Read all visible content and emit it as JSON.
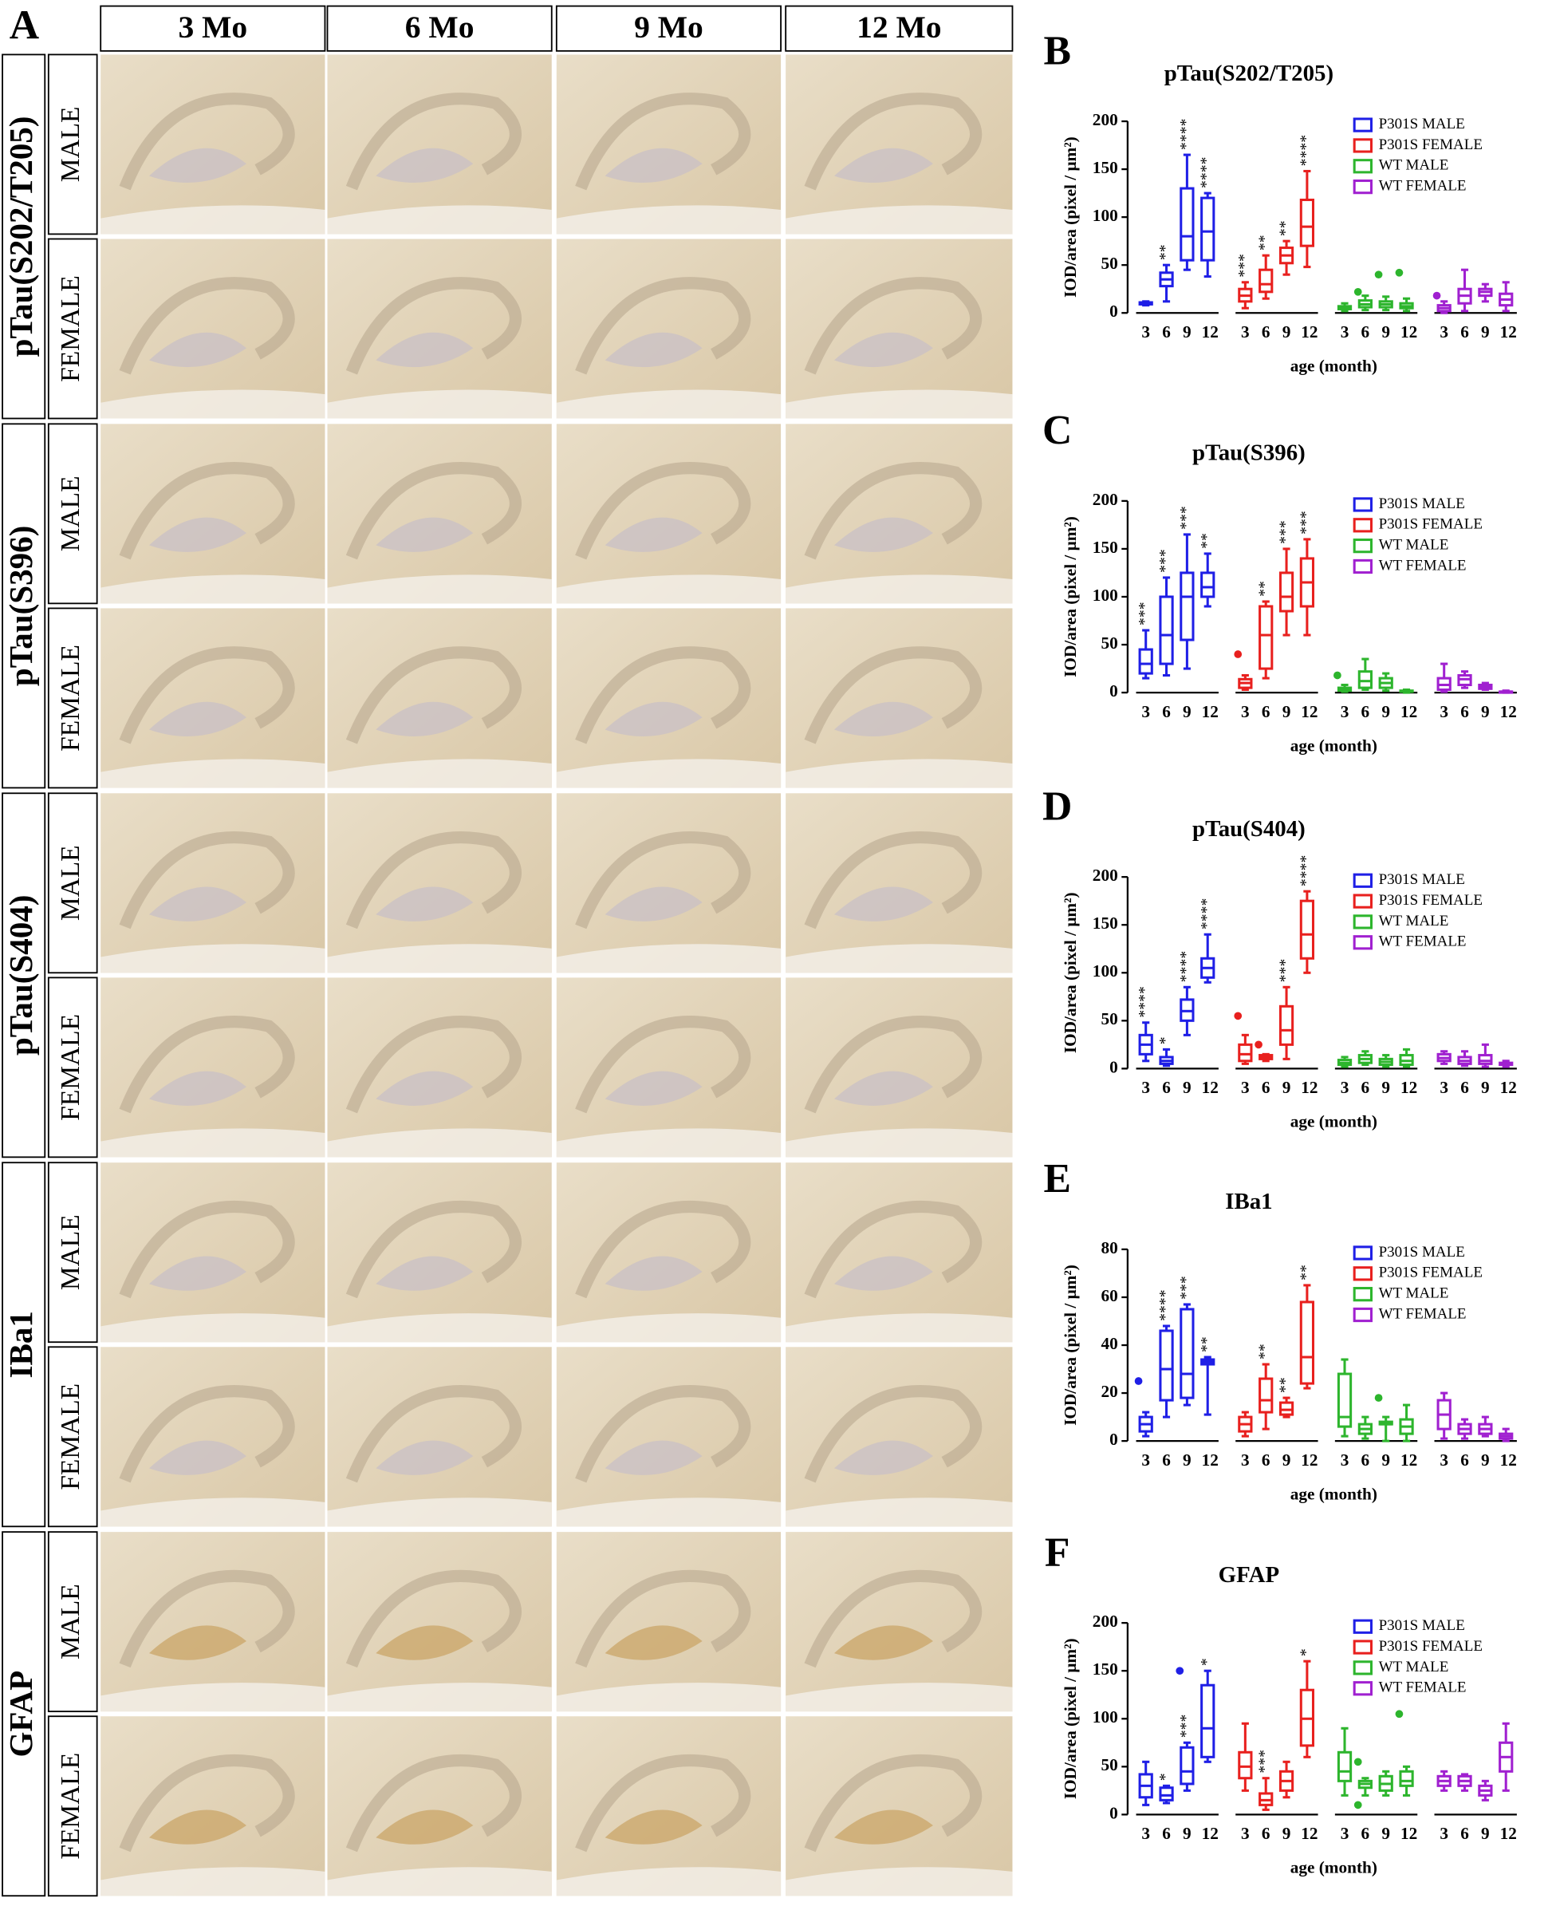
{
  "panel_a": {
    "label": "A",
    "columns": [
      "3 Mo",
      "6 Mo",
      "9 Mo",
      "12 Mo"
    ],
    "markers": [
      {
        "name": "pTau(S202/T205)",
        "rows": [
          "MALE",
          "FEMALE"
        ]
      },
      {
        "name": "pTau(S396)",
        "rows": [
          "MALE",
          "FEMALE"
        ]
      },
      {
        "name": "pTau(S404)",
        "rows": [
          "MALE",
          "FEMALE"
        ]
      },
      {
        "name": "IBa1",
        "rows": [
          "MALE",
          "FEMALE"
        ]
      },
      {
        "name": "GFAP",
        "rows": [
          "MALE",
          "FEMALE"
        ]
      }
    ]
  },
  "chart_data": [
    {
      "type": "box",
      "panel": "B",
      "title": "pTau(S202/T205)",
      "y_label": "IOD/area (pixel / μm²)",
      "x_label": "age (month)",
      "categories": [
        "3",
        "6",
        "9",
        "12"
      ],
      "ylim": [
        0,
        200
      ],
      "yticks": [
        0,
        50,
        100,
        150,
        200
      ],
      "series": [
        {
          "name": "P301S MALE",
          "color": "#1f1fe6",
          "values": [
            [
              8,
              9,
              10,
              11,
              12
            ],
            [
              12,
              28,
              35,
              42,
              50
            ],
            [
              45,
              55,
              80,
              130,
              165
            ],
            [
              38,
              55,
              85,
              120,
              125
            ]
          ],
          "annotations": [
            null,
            "**",
            "****",
            "****"
          ],
          "outliers": [
            [],
            [],
            [],
            []
          ]
        },
        {
          "name": "P301S FEMALE",
          "color": "#e8201e",
          "values": [
            [
              5,
              12,
              18,
              25,
              32
            ],
            [
              15,
              22,
              30,
              45,
              60
            ],
            [
              40,
              52,
              60,
              68,
              75
            ],
            [
              48,
              70,
              90,
              118,
              148
            ]
          ],
          "annotations": [
            "***",
            "**",
            "**",
            "****"
          ],
          "outliers": [
            [],
            [],
            [],
            []
          ]
        },
        {
          "name": "WT MALE",
          "color": "#2db52d",
          "values": [
            [
              2,
              4,
              5,
              7,
              10
            ],
            [
              3,
              6,
              9,
              13,
              18
            ],
            [
              3,
              6,
              9,
              12,
              17
            ],
            [
              2,
              5,
              7,
              10,
              15
            ]
          ],
          "annotations": [
            null,
            null,
            null,
            null
          ],
          "outliers": [
            [],
            [
              22
            ],
            [
              40
            ],
            [
              42
            ]
          ]
        },
        {
          "name": "WT FEMALE",
          "color": "#a020d0",
          "values": [
            [
              0,
              2,
              5,
              8,
              12
            ],
            [
              2,
              10,
              18,
              25,
              45
            ],
            [
              12,
              18,
              22,
              25,
              30
            ],
            [
              2,
              8,
              14,
              20,
              32
            ]
          ],
          "annotations": [
            null,
            null,
            null,
            null
          ],
          "outliers": [
            [
              18
            ],
            [],
            [],
            []
          ]
        }
      ]
    },
    {
      "type": "box",
      "panel": "C",
      "title": "pTau(S396)",
      "y_label": "IOD/area (pixel / μm²)",
      "x_label": "age (month)",
      "categories": [
        "3",
        "6",
        "9",
        "12"
      ],
      "ylim": [
        0,
        200
      ],
      "yticks": [
        0,
        50,
        100,
        150,
        200
      ],
      "series": [
        {
          "name": "P301S MALE",
          "color": "#1f1fe6",
          "values": [
            [
              15,
              20,
              30,
              45,
              65
            ],
            [
              18,
              30,
              60,
              100,
              120
            ],
            [
              25,
              55,
              100,
              125,
              165
            ],
            [
              90,
              100,
              110,
              125,
              145
            ]
          ],
          "annotations": [
            "***",
            "***",
            "***",
            "**"
          ],
          "outliers": [
            [],
            [],
            [],
            []
          ]
        },
        {
          "name": "P301S FEMALE",
          "color": "#e8201e",
          "values": [
            [
              3,
              5,
              10,
              14,
              18
            ],
            [
              15,
              25,
              60,
              90,
              95
            ],
            [
              60,
              85,
              100,
              125,
              150
            ],
            [
              60,
              90,
              115,
              140,
              160
            ]
          ],
          "annotations": [
            null,
            "**",
            "***",
            "***"
          ],
          "outliers": [
            [
              40
            ],
            [],
            [],
            []
          ]
        },
        {
          "name": "WT MALE",
          "color": "#2db52d",
          "values": [
            [
              1,
              2,
              3,
              5,
              8
            ],
            [
              3,
              5,
              12,
              22,
              35
            ],
            [
              2,
              5,
              10,
              15,
              20
            ],
            [
              0,
              1,
              1,
              2,
              3
            ]
          ],
          "annotations": [
            null,
            null,
            null,
            null
          ],
          "outliers": [
            [
              18
            ],
            [],
            [],
            []
          ]
        },
        {
          "name": "WT FEMALE",
          "color": "#a020d0",
          "values": [
            [
              1,
              3,
              8,
              15,
              30
            ],
            [
              5,
              8,
              14,
              18,
              22
            ],
            [
              3,
              4,
              6,
              8,
              10
            ],
            [
              0,
              0,
              1,
              1,
              2
            ]
          ],
          "annotations": [
            null,
            null,
            null,
            null
          ],
          "outliers": [
            [],
            [],
            [],
            []
          ]
        }
      ]
    },
    {
      "type": "box",
      "panel": "D",
      "title": "pTau(S404)",
      "y_label": "IOD/area (pixel / μm²)",
      "x_label": "age (month)",
      "categories": [
        "3",
        "6",
        "9",
        "12"
      ],
      "ylim": [
        0,
        200
      ],
      "yticks": [
        0,
        50,
        100,
        150,
        200
      ],
      "series": [
        {
          "name": "P301S MALE",
          "color": "#1f1fe6",
          "values": [
            [
              8,
              15,
              25,
              35,
              48
            ],
            [
              3,
              5,
              8,
              12,
              20
            ],
            [
              35,
              50,
              60,
              72,
              85
            ],
            [
              90,
              95,
              105,
              115,
              140
            ]
          ],
          "annotations": [
            "****",
            "*",
            "****",
            "****"
          ],
          "outliers": [
            [],
            [],
            [],
            []
          ]
        },
        {
          "name": "P301S FEMALE",
          "color": "#e8201e",
          "values": [
            [
              5,
              8,
              15,
              25,
              35
            ],
            [
              8,
              10,
              12,
              14,
              15
            ],
            [
              10,
              25,
              40,
              65,
              85
            ],
            [
              100,
              115,
              140,
              175,
              185
            ]
          ],
          "annotations": [
            null,
            null,
            "***",
            "****"
          ],
          "outliers": [
            [
              55
            ],
            [
              25
            ],
            [],
            []
          ]
        },
        {
          "name": "WT MALE",
          "color": "#2db52d",
          "values": [
            [
              2,
              4,
              6,
              9,
              12
            ],
            [
              4,
              6,
              10,
              14,
              18
            ],
            [
              2,
              4,
              7,
              10,
              14
            ],
            [
              2,
              4,
              8,
              14,
              20
            ]
          ],
          "annotations": [
            null,
            null,
            null,
            null
          ],
          "outliers": [
            [],
            [],
            [],
            []
          ]
        },
        {
          "name": "WT FEMALE",
          "color": "#a020d0",
          "values": [
            [
              5,
              8,
              11,
              15,
              18
            ],
            [
              3,
              5,
              8,
              12,
              18
            ],
            [
              2,
              5,
              8,
              14,
              25
            ],
            [
              2,
              4,
              5,
              6,
              8
            ]
          ],
          "annotations": [
            null,
            null,
            null,
            null
          ],
          "outliers": [
            [],
            [],
            [],
            []
          ]
        }
      ]
    },
    {
      "type": "box",
      "panel": "E",
      "title": "IBa1",
      "y_label": "IOD/area (pixel / μm²)",
      "x_label": "age (month)",
      "categories": [
        "3",
        "6",
        "9",
        "12"
      ],
      "ylim": [
        0,
        80
      ],
      "yticks": [
        0,
        20,
        40,
        60,
        80
      ],
      "series": [
        {
          "name": "P301S MALE",
          "color": "#1f1fe6",
          "values": [
            [
              2,
              4,
              7,
              10,
              12
            ],
            [
              10,
              17,
              30,
              46,
              48
            ],
            [
              15,
              18,
              28,
              55,
              57
            ],
            [
              11,
              32,
              33,
              34,
              35
            ]
          ],
          "annotations": [
            null,
            "****",
            "***",
            "**"
          ],
          "outliers": [
            [
              25
            ],
            [],
            [],
            []
          ]
        },
        {
          "name": "P301S FEMALE",
          "color": "#e8201e",
          "values": [
            [
              2,
              4,
              7,
              10,
              12
            ],
            [
              5,
              12,
              17,
              26,
              32
            ],
            [
              10,
              11,
              13,
              16,
              18
            ],
            [
              22,
              24,
              35,
              58,
              65
            ]
          ],
          "annotations": [
            null,
            "**",
            "**",
            "**"
          ],
          "outliers": [
            [],
            [],
            [],
            []
          ]
        },
        {
          "name": "WT MALE",
          "color": "#2db52d",
          "values": [
            [
              2,
              6,
              10,
              28,
              34
            ],
            [
              1,
              3,
              5,
              7,
              10
            ],
            [
              0,
              7,
              7,
              8,
              10
            ],
            [
              0,
              3,
              6,
              9,
              15
            ]
          ],
          "annotations": [
            null,
            null,
            null,
            null
          ],
          "outliers": [
            [],
            [],
            [
              18
            ],
            []
          ]
        },
        {
          "name": "WT FEMALE",
          "color": "#a020d0",
          "values": [
            [
              1,
              5,
              11,
              17,
              20
            ],
            [
              1,
              3,
              5,
              7,
              9
            ],
            [
              2,
              3,
              5,
              7,
              10
            ],
            [
              0,
              1,
              2,
              3,
              5
            ]
          ],
          "annotations": [
            null,
            null,
            null,
            null
          ],
          "outliers": [
            [],
            [],
            [],
            []
          ]
        }
      ]
    },
    {
      "type": "box",
      "panel": "F",
      "title": "GFAP",
      "y_label": "IOD/area (pixel / μm²)",
      "x_label": "age (month)",
      "categories": [
        "3",
        "6",
        "9",
        "12"
      ],
      "ylim": [
        0,
        200
      ],
      "yticks": [
        0,
        50,
        100,
        150,
        200
      ],
      "series": [
        {
          "name": "P301S MALE",
          "color": "#1f1fe6",
          "values": [
            [
              10,
              18,
              30,
              42,
              55
            ],
            [
              12,
              15,
              20,
              28,
              30
            ],
            [
              25,
              32,
              45,
              70,
              75
            ],
            [
              55,
              60,
              90,
              135,
              150
            ]
          ],
          "annotations": [
            null,
            "*",
            "***",
            "*"
          ],
          "outliers": [
            [],
            [],
            [
              150
            ],
            []
          ]
        },
        {
          "name": "P301S FEMALE",
          "color": "#e8201e",
          "values": [
            [
              25,
              38,
              50,
              65,
              95
            ],
            [
              5,
              10,
              15,
              22,
              38
            ],
            [
              18,
              25,
              35,
              45,
              55
            ],
            [
              60,
              72,
              100,
              130,
              160
            ]
          ],
          "annotations": [
            null,
            "***",
            null,
            "*"
          ],
          "outliers": [
            [],
            [],
            [],
            []
          ]
        },
        {
          "name": "WT MALE",
          "color": "#2db52d",
          "values": [
            [
              20,
              35,
              45,
              65,
              90
            ],
            [
              20,
              28,
              32,
              35,
              38
            ],
            [
              20,
              25,
              32,
              40,
              45
            ],
            [
              20,
              30,
              35,
              45,
              50
            ]
          ],
          "annotations": [
            null,
            null,
            null,
            null
          ],
          "outliers": [
            [],
            [
              55,
              10
            ],
            [],
            [
              105
            ]
          ]
        },
        {
          "name": "WT FEMALE",
          "color": "#a020d0",
          "values": [
            [
              25,
              30,
              35,
              40,
              45
            ],
            [
              25,
              30,
              35,
              40,
              42
            ],
            [
              15,
              20,
              25,
              30,
              35
            ],
            [
              25,
              45,
              60,
              75,
              95
            ]
          ],
          "annotations": [
            null,
            null,
            null,
            null
          ],
          "outliers": [
            [],
            [],
            [],
            []
          ]
        }
      ]
    }
  ]
}
